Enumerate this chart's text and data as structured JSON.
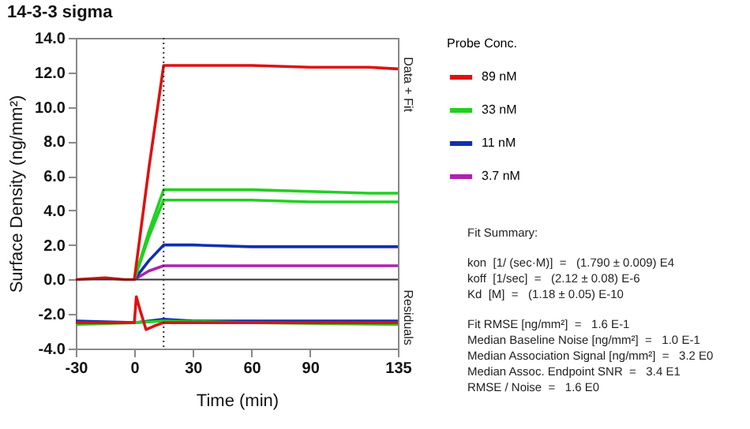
{
  "chart_data": {
    "type": "line",
    "title": "14-3-3 sigma",
    "xlabel": "Time (min)",
    "ylabel": "Surface Density (ng/mm²)",
    "legend_title": "Probe Conc.",
    "legend": "right",
    "grid": false,
    "marker": "none",
    "x": [
      -30,
      -15,
      -5,
      0,
      7.5,
      15,
      30,
      60,
      90,
      120,
      135
    ],
    "series": [
      {
        "name": "89 nM",
        "color": "#e01010",
        "values": [
          0,
          0.1,
          0,
          0,
          6.5,
          12.4,
          12.4,
          12.4,
          12.3,
          12.3,
          12.2
        ]
      },
      {
        "name": "33 nM",
        "color": "#20d020",
        "values": [
          null,
          null,
          null,
          0,
          2.8,
          5.2,
          5.2,
          5.2,
          5.1,
          5.0,
          5.0
        ]
      },
      {
        "color": "#20d020",
        "values": [
          null,
          null,
          null,
          0,
          2.5,
          4.6,
          4.6,
          4.6,
          4.5,
          4.5,
          4.5
        ]
      },
      {
        "name": "11 nM",
        "color": "#1030b0",
        "values": [
          null,
          null,
          null,
          0,
          1.1,
          2.0,
          2.0,
          1.9,
          1.9,
          1.9,
          1.9
        ]
      },
      {
        "name": "3.7 nM",
        "color": "#b020b0",
        "values": [
          null,
          null,
          null,
          0,
          0.5,
          0.8,
          0.8,
          0.8,
          0.8,
          0.8,
          0.8
        ]
      },
      {
        "color": "#e01010",
        "x": [
          -30,
          -10,
          0,
          1,
          3,
          6,
          10,
          15,
          60,
          135
        ],
        "values": [
          -2.5,
          -2.5,
          -2.5,
          -1.0,
          -1.8,
          -2.9,
          -2.7,
          -2.5,
          -2.5,
          -2.5
        ]
      },
      {
        "color": "#20d020",
        "x": [
          -30,
          0,
          15,
          60,
          135
        ],
        "values": [
          -2.6,
          -2.5,
          -2.4,
          -2.5,
          -2.6
        ]
      },
      {
        "color": "#1030b0",
        "x": [
          -30,
          0,
          15,
          30,
          135
        ],
        "values": [
          -2.4,
          -2.5,
          -2.3,
          -2.4,
          -2.4
        ]
      }
    ],
    "xlim": [
      -30,
      135
    ],
    "xticks": [
      -30,
      0,
      30,
      60,
      90,
      135
    ],
    "ylim": [
      -4,
      14
    ],
    "yticks": [
      {
        "value": -4,
        "label": "-4.0"
      },
      {
        "value": -2,
        "label": "-2.0"
      },
      {
        "value": 0,
        "label": "0.0"
      },
      {
        "value": 2,
        "label": "2.0"
      },
      {
        "value": 4,
        "label": "4.0"
      },
      {
        "value": 6,
        "label": "6.0"
      },
      {
        "value": 8,
        "label": "8.0"
      },
      {
        "value": 10,
        "label": "10.0"
      },
      {
        "value": 12,
        "label": "12.0"
      },
      {
        "value": 14,
        "label": "14.0"
      }
    ],
    "ref_lines": [
      {
        "axis": "x",
        "value": 15,
        "color": "#333333",
        "line_style": "dotted"
      },
      {
        "axis": "y",
        "value": 0,
        "color": "#333333",
        "line_style": "solid"
      }
    ],
    "annotations": [
      "Data + Fit",
      "Residuals",
      "Fit Summary:",
      "kon  [1/ (sec·M)]  =   (1.790 ± 0.009) E4",
      "koff  [1/sec]  =   (2.12 ± 0.08) E-6",
      "Kd  [M]  =   (1.18 ± 0.05) E-10",
      "Fit RMSE [ng/mm²]  =   1.6 E-1",
      "Median Baseline Noise [ng/mm²]  =   1.0 E-1",
      "Median Association Signal [ng/mm²]  =   3.2 E0",
      "Median Assoc. Endpoint SNR  =   3.4 E1",
      "RMSE / Noise  =   1.6 E0"
    ]
  }
}
